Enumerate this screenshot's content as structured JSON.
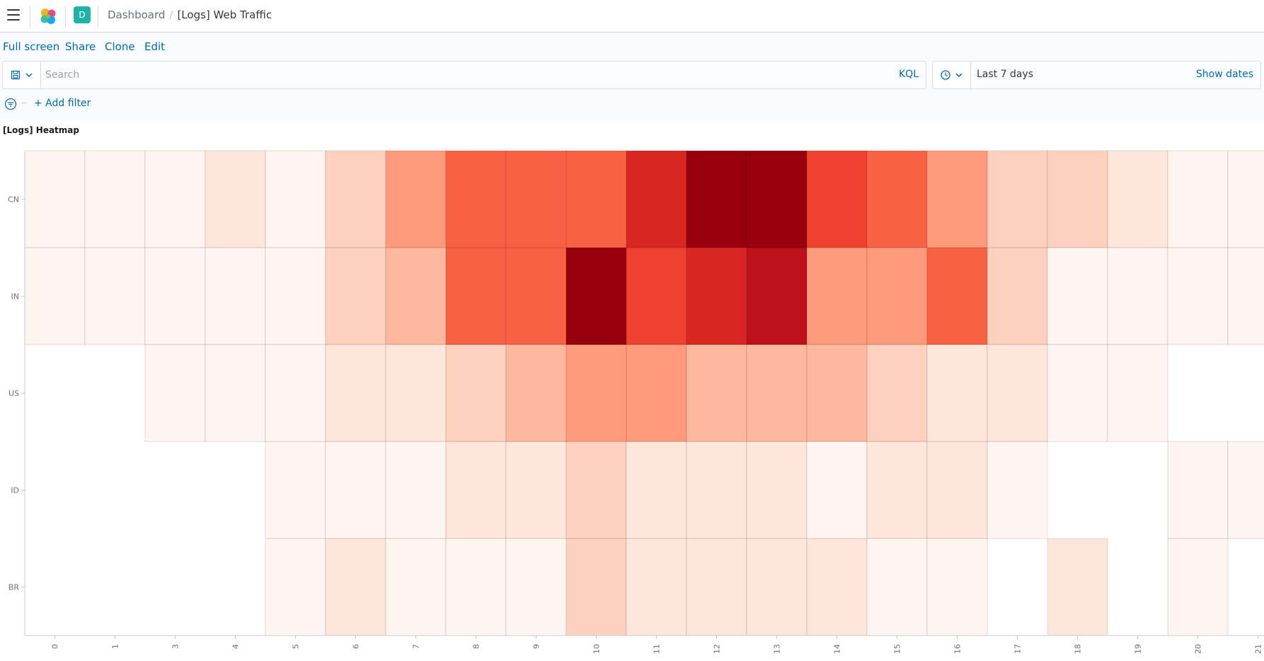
{
  "header": {
    "space_initial": "D",
    "breadcrumb_root": "Dashboard",
    "breadcrumb_separator": "/",
    "breadcrumb_current": "[Logs] Web Traffic"
  },
  "topnav": {
    "fullscreen": "Full screen",
    "share": "Share",
    "clone": "Clone",
    "edit": "Edit"
  },
  "query": {
    "placeholder": "Search",
    "value": "",
    "language": "KQL"
  },
  "time": {
    "label": "Last 7 days",
    "show_dates": "Show dates"
  },
  "filters": {
    "add_label": "+ Add filter"
  },
  "panel": {
    "title": "[Logs] Heatmap"
  },
  "colors": {
    "link": "#006bb8",
    "space_badge": "#20b2a6",
    "heat_low": "#fff5f0",
    "heat_high": "#99000d"
  },
  "icons": {
    "menu": "hamburger-icon",
    "logo": "elastic-logo",
    "saved_query": "floppy-disk-icon",
    "time": "clock-icon",
    "dropdown": "chevron-down-icon",
    "filter": "filter-icon"
  },
  "chart_data": {
    "type": "heatmap",
    "title": "",
    "xlabel": "",
    "ylabel": "",
    "x": [
      "0",
      "1",
      "3",
      "4",
      "5",
      "6",
      "7",
      "8",
      "9",
      "10",
      "11",
      "12",
      "13",
      "14",
      "15",
      "16",
      "17",
      "18",
      "19",
      "20",
      "21"
    ],
    "y": [
      "CN",
      "IN",
      "US",
      "ID",
      "BR"
    ],
    "values": [
      [
        1,
        1,
        1,
        2,
        1,
        3,
        5,
        7,
        7,
        7,
        9,
        11,
        11,
        8,
        7,
        5,
        3,
        3,
        2,
        1,
        1
      ],
      [
        1,
        1,
        1,
        1,
        1,
        3,
        4,
        7,
        7,
        11,
        8,
        9,
        10,
        5,
        5,
        7,
        3,
        1,
        1,
        1,
        1
      ],
      [
        null,
        null,
        1,
        1,
        1,
        2,
        2,
        3,
        4,
        5,
        5,
        4,
        4,
        4,
        3,
        2,
        2,
        1,
        1,
        null,
        null
      ],
      [
        null,
        null,
        null,
        null,
        1,
        1,
        1,
        2,
        2,
        3,
        2,
        2,
        2,
        1,
        2,
        2,
        1,
        null,
        null,
        1,
        1
      ],
      [
        null,
        null,
        null,
        null,
        1,
        2,
        1,
        1,
        1,
        3,
        2,
        2,
        2,
        2,
        1,
        1,
        null,
        2,
        null,
        1,
        null
      ]
    ],
    "color_scale": "reds",
    "grid": true,
    "legend": "none"
  }
}
